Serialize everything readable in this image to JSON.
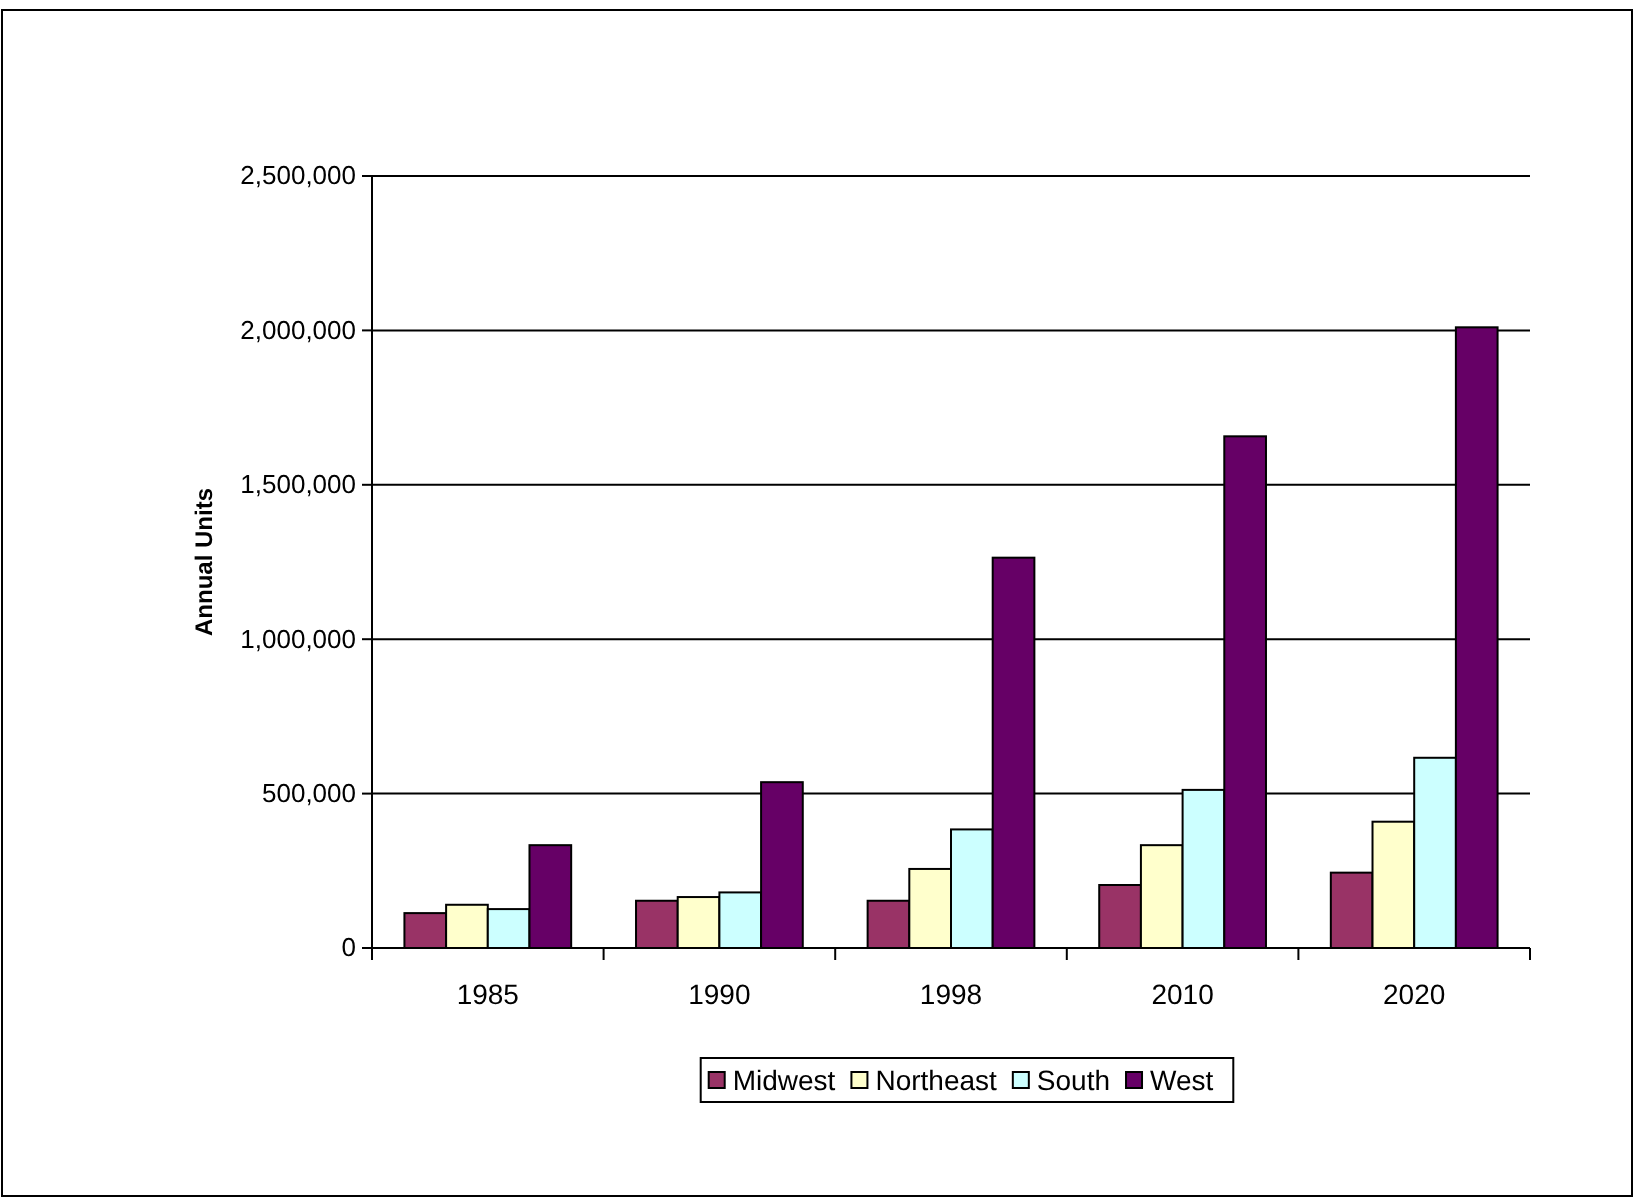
{
  "chart_data": {
    "type": "bar",
    "ylabel": "Annual Units",
    "categories": [
      "1985",
      "1990",
      "1998",
      "2010",
      "2020"
    ],
    "series": [
      {
        "name": "Midwest",
        "color": "#993366",
        "values": [
          113000,
          153000,
          153000,
          204000,
          244000
        ]
      },
      {
        "name": "Northeast",
        "color": "#ffffcc",
        "values": [
          140000,
          165000,
          256000,
          333000,
          409000
        ]
      },
      {
        "name": "South",
        "color": "#ccffff",
        "values": [
          126000,
          180000,
          384000,
          512000,
          616000
        ]
      },
      {
        "name": "West",
        "color": "#660066",
        "values": [
          333000,
          537000,
          1264000,
          1657000,
          2010000
        ]
      }
    ],
    "ylim": [
      0,
      2500000
    ],
    "yticks": [
      {
        "value": 0,
        "label": "0"
      },
      {
        "value": 500000,
        "label": "500,000"
      },
      {
        "value": 1000000,
        "label": "1,000,000"
      },
      {
        "value": 1500000,
        "label": "1,500,000"
      },
      {
        "value": 2000000,
        "label": "2,000,000"
      },
      {
        "value": 2500000,
        "label": "2,500,000"
      }
    ],
    "grid": "y",
    "legend": "bottom"
  }
}
